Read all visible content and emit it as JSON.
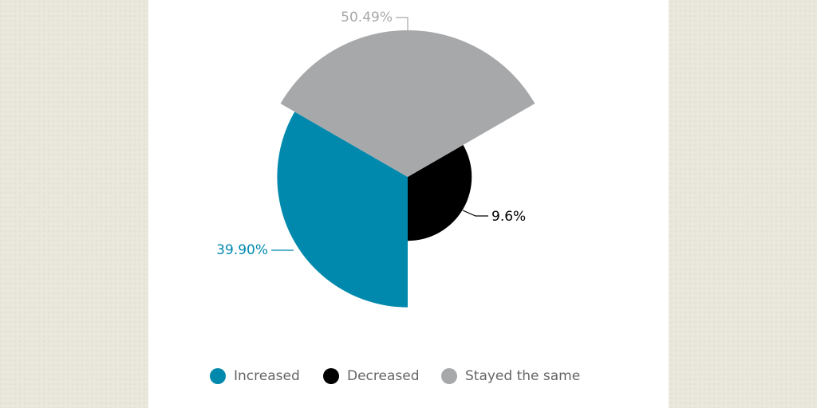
{
  "chart_data": {
    "type": "polar-area",
    "categories": [
      "Increased",
      "Decreased",
      "Stayed the same"
    ],
    "values": [
      39.9,
      9.6,
      50.49
    ],
    "value_labels": [
      "39.90%",
      "9.6%",
      "50.49%"
    ],
    "colors": [
      "#0089ad",
      "#000000",
      "#a7a8aa"
    ]
  }
}
